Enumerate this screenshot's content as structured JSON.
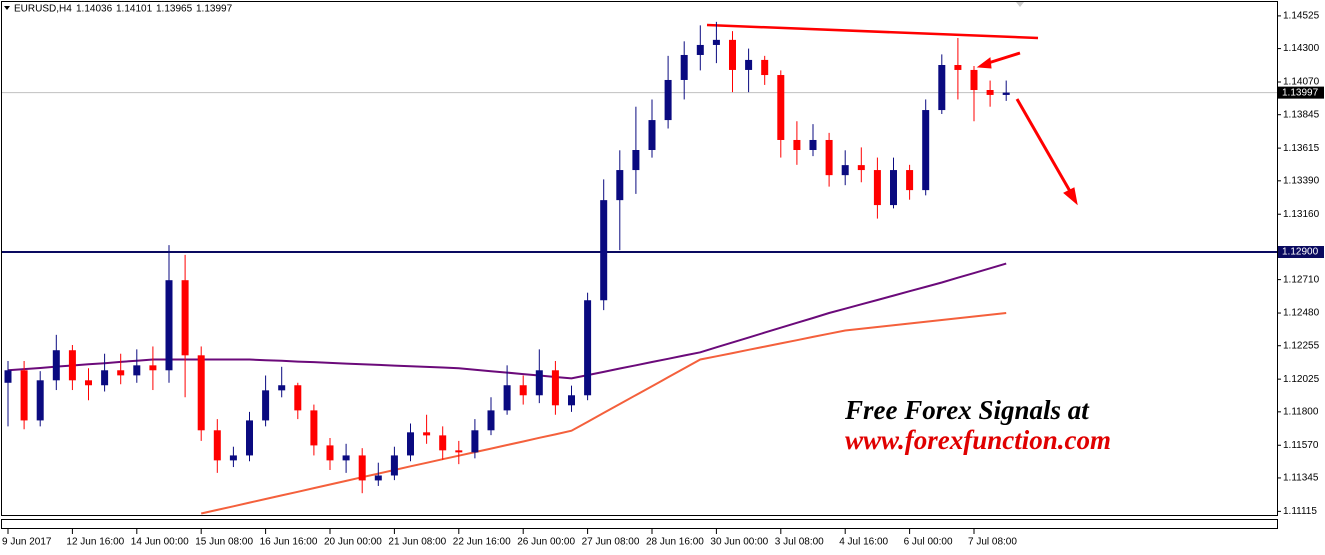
{
  "chart_data": {
    "type": "candlestick",
    "title": "EURUSD,H4",
    "header_values": [
      1.14036,
      1.14101,
      1.13965,
      1.13997
    ],
    "categories": [
      "9 Jun 2017",
      null,
      null,
      null,
      "12 Jun 16:00",
      null,
      null,
      null,
      "14 Jun 00:00",
      null,
      null,
      null,
      "15 Jun 08:00",
      null,
      null,
      null,
      "16 Jun 16:00",
      null,
      null,
      null,
      "20 Jun 00:00",
      null,
      null,
      null,
      "21 Jun 08:00",
      null,
      null,
      null,
      "22 Jun 16:00",
      null,
      null,
      null,
      "26 Jun 00:00",
      null,
      null,
      null,
      "27 Jun 08:00",
      null,
      null,
      null,
      "28 Jun 16:00",
      null,
      null,
      null,
      "30 Jun 00:00",
      null,
      null,
      null,
      "3 Jul 08:00",
      null,
      null,
      null,
      "4 Jul 16:00",
      null,
      null,
      null,
      "6 Jul 00:00",
      null,
      null,
      null,
      "7 Jul 08:00",
      null,
      null
    ],
    "open": [
      1.12,
      1.12086,
      1.11741,
      1.12017,
      1.12224,
      1.12017,
      1.11983,
      1.12086,
      1.12051,
      1.1212,
      1.12086,
      1.12706,
      1.12189,
      1.11673,
      1.11466,
      1.115,
      1.11741,
      1.11948,
      1.11983,
      1.1181,
      1.11569,
      1.11466,
      1.115,
      1.11328,
      1.11362,
      1.115,
      1.11659,
      1.11638,
      1.11535,
      1.11521,
      1.11673,
      1.1181,
      1.11983,
      1.11914,
      1.12086,
      1.11845,
      1.11914,
      1.12568,
      1.13257,
      1.13464,
      1.13602,
      1.13808,
      1.14084,
      1.14256,
      1.14325,
      1.1436,
      1.14153,
      1.14222,
      1.14118,
      1.13671,
      1.13602,
      1.13671,
      1.13429,
      1.13498,
      1.13464,
      1.13223,
      1.13464,
      1.13326,
      1.13877,
      1.14187,
      1.14153,
      1.14015,
      1.13981
    ],
    "high": [
      1.1215,
      1.1215,
      1.1208,
      1.1233,
      1.1226,
      1.121,
      1.122,
      1.122,
      1.1223,
      1.1225,
      1.12947,
      1.1288,
      1.1225,
      1.1175,
      1.1156,
      1.118,
      1.1205,
      1.1211,
      1.12,
      1.1185,
      1.1162,
      1.1158,
      1.1155,
      1.1145,
      1.1156,
      1.1172,
      1.1178,
      1.117,
      1.116,
      1.1175,
      1.119,
      1.1212,
      1.1205,
      1.1223,
      1.1215,
      1.1198,
      1.1262,
      1.134,
      1.136,
      1.139,
      1.1395,
      1.1425,
      1.1435,
      1.1446,
      1.14484,
      1.1442,
      1.143,
      1.1425,
      1.1415,
      1.138,
      1.1378,
      1.1372,
      1.136,
      1.1362,
      1.1355,
      1.1355,
      1.135,
      1.1395,
      1.1426,
      1.14373,
      1.1418,
      1.1408,
      1.1408
    ],
    "low": [
      1.117,
      1.1168,
      1.117,
      1.1195,
      1.1195,
      1.1188,
      1.1194,
      1.1199,
      1.12,
      1.1195,
      1.12,
      1.119,
      1.116,
      1.1138,
      1.1142,
      1.1146,
      1.117,
      1.119,
      1.1175,
      1.115,
      1.114,
      1.1138,
      1.1124,
      1.1129,
      1.1133,
      1.1146,
      1.1158,
      1.1147,
      1.1144,
      1.1148,
      1.1164,
      1.1178,
      1.1185,
      1.1186,
      1.1178,
      1.118,
      1.1188,
      1.125,
      1.12913,
      1.133,
      1.1355,
      1.1375,
      1.1395,
      1.1415,
      1.142,
      1.14,
      1.14,
      1.1405,
      1.1355,
      1.135,
      1.1356,
      1.1335,
      1.1336,
      1.1338,
      1.1313,
      1.132,
      1.1326,
      1.1329,
      1.1385,
      1.1395,
      1.138,
      1.139,
      1.1394
    ],
    "close": [
      1.12086,
      1.11741,
      1.12017,
      1.12224,
      1.12017,
      1.11983,
      1.12086,
      1.12051,
      1.1212,
      1.12086,
      1.12706,
      1.12189,
      1.11673,
      1.11466,
      1.115,
      1.11741,
      1.11948,
      1.11983,
      1.1181,
      1.11569,
      1.11466,
      1.115,
      1.11328,
      1.11362,
      1.115,
      1.11659,
      1.11638,
      1.11535,
      1.11521,
      1.11673,
      1.1181,
      1.11983,
      1.11914,
      1.12086,
      1.11845,
      1.11914,
      1.12568,
      1.13257,
      1.13464,
      1.13602,
      1.13808,
      1.14084,
      1.14256,
      1.14325,
      1.1436,
      1.14153,
      1.14222,
      1.14118,
      1.13671,
      1.13602,
      1.13671,
      1.13429,
      1.13498,
      1.13464,
      1.13223,
      1.13464,
      1.13326,
      1.13877,
      1.14187,
      1.14153,
      1.14015,
      1.13981,
      1.13997
    ],
    "up_color": "#0a0a80",
    "down_color": "#ff0000",
    "moving_averages": [
      {
        "color": "#6b0a7a",
        "values": [
          1.12086,
          1.12094,
          1.12102,
          1.12111,
          1.12119,
          1.12127,
          1.12135,
          1.12144,
          1.12152,
          1.1216,
          1.1216,
          1.1216,
          1.1216,
          1.1216,
          1.1216,
          1.1216,
          1.12155,
          1.12151,
          1.12146,
          1.12142,
          1.12137,
          1.12132,
          1.12128,
          1.12123,
          1.12118,
          1.12114,
          1.12109,
          1.12105,
          1.121,
          1.1209,
          1.1208,
          1.1207,
          1.1206,
          1.1205,
          1.1204,
          1.1203,
          1.12053,
          1.12075,
          1.12098,
          1.1212,
          1.12143,
          1.12165,
          1.12188,
          1.1221,
          1.12244,
          1.12278,
          1.12311,
          1.12345,
          1.12379,
          1.12413,
          1.12446,
          1.1248,
          1.1251,
          1.1254,
          1.1257,
          1.126,
          1.1263,
          1.1266,
          1.1269,
          1.12723,
          1.12755,
          1.12788,
          1.1282
        ]
      },
      {
        "color": "#f4603c",
        "values": [
          null,
          null,
          null,
          null,
          null,
          null,
          null,
          null,
          null,
          null,
          null,
          null,
          1.111,
          1.11125,
          1.1115,
          1.11175,
          1.112,
          1.11225,
          1.1125,
          1.11275,
          1.113,
          1.11325,
          1.1135,
          1.11375,
          1.114,
          1.11425,
          1.11449,
          1.11474,
          1.11498,
          1.11523,
          1.11547,
          1.11572,
          1.11596,
          1.11621,
          1.11645,
          1.1167,
          1.11731,
          1.11793,
          1.11854,
          1.11915,
          1.11976,
          1.12038,
          1.12099,
          1.1216,
          1.12182,
          1.12204,
          1.12227,
          1.12249,
          1.12271,
          1.12293,
          1.12316,
          1.12338,
          1.1236,
          1.12372,
          1.12384,
          1.12396,
          1.12408,
          1.1242,
          1.12432,
          1.12444,
          1.12456,
          1.12468,
          1.1248
        ]
      }
    ],
    "ylim": [
      1.1109,
      1.146
    ],
    "yticks": [
      1.14525,
      {
        "value": 1.143,
        "label": "1.14300"
      },
      {
        "value": 1.1407,
        "label": "1.14070"
      },
      1.13845,
      1.13615,
      {
        "value": 1.1339,
        "label": "1.13390"
      },
      {
        "value": 1.1316,
        "label": "1.13160"
      },
      {
        "value": 1.1271,
        "label": "1.12710"
      },
      {
        "value": 1.1248,
        "label": "1.12480"
      },
      1.12255,
      1.12025,
      {
        "value": 1.118,
        "label": "1.11800"
      },
      {
        "value": 1.1157,
        "label": "1.11570"
      },
      1.11345,
      1.11115
    ],
    "horizontal_line": {
      "value": 1.129,
      "label": "1.12900",
      "color": "#0a0a60"
    },
    "current_price": 1.13997,
    "annotations": [
      "Free Forex Signals at",
      "www.forexfunction.com"
    ]
  }
}
